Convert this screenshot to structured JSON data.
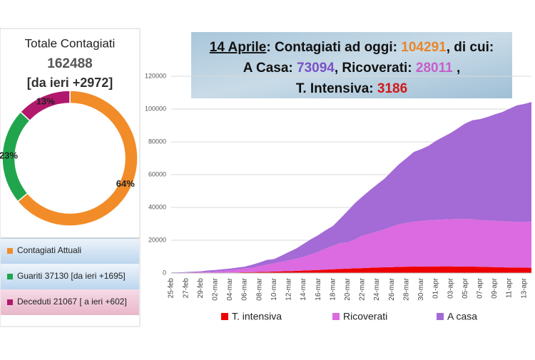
{
  "chart_data": [
    {
      "type": "donut",
      "title": "Totale Contagiati",
      "total": 162488,
      "subtitle": "[da ieri +2972]",
      "categories": [
        "Contagiati Attuali",
        "Guariti 37130 [da ieri +1695]",
        "Deceduti 21067 [ a ieri +602]"
      ],
      "values": [
        64,
        23,
        13
      ],
      "value_labels": [
        "64%",
        "23%",
        "13%"
      ],
      "colors": [
        "#f28c28",
        "#21a54c",
        "#b2186c"
      ]
    },
    {
      "type": "stacked-area",
      "title_lines": [
        [
          {
            "text": "14 Aprile",
            "color": "#111111",
            "underline": true
          },
          {
            "text": ": Contagiati ad oggi: ",
            "color": "#111111"
          },
          {
            "text": "104291",
            "color": "#e8862a"
          },
          {
            "text": ", di cui:",
            "color": "#111111"
          }
        ],
        [
          {
            "text": "A Casa: ",
            "color": "#111111"
          },
          {
            "text": "73094",
            "color": "#7a52c6"
          },
          {
            "text": ", Ricoverati: ",
            "color": "#111111"
          },
          {
            "text": "28011",
            "color": "#c65ec8"
          },
          {
            "text": " ,",
            "color": "#111111"
          }
        ],
        [
          {
            "text": "T. Intensiva: ",
            "color": "#111111"
          },
          {
            "text": "3186",
            "color": "#d01818"
          }
        ]
      ],
      "x": [
        "25-feb",
        null,
        "27-feb",
        null,
        "29-feb",
        null,
        "02-mar",
        null,
        "04-mar",
        null,
        "06-mar",
        null,
        "08-mar",
        null,
        "10-mar",
        null,
        "12-mar",
        null,
        "14-mar",
        null,
        "16-mar",
        null,
        "18-mar",
        null,
        "20-mar",
        null,
        "22-mar",
        null,
        "24-mar",
        null,
        "26-mar",
        null,
        "28-mar",
        null,
        "30-mar",
        null,
        "01-apr",
        null,
        "03-apr",
        null,
        "05-apr",
        null,
        "07-apr",
        null,
        "09-apr",
        null,
        "11-apr",
        null,
        "13-apr",
        null
      ],
      "series": [
        {
          "name": "T. intensiva",
          "color": "#ee0000",
          "values": [
            35,
            36,
            56,
            64,
            105,
            140,
            166,
            229,
            295,
            351,
            462,
            567,
            650,
            733,
            877,
            1028,
            1153,
            1328,
            1518,
            1672,
            1851,
            2060,
            2257,
            2498,
            2655,
            2857,
            3009,
            3204,
            3396,
            3489,
            3612,
            3732,
            3856,
            3906,
            3981,
            4023,
            4035,
            4053,
            4068,
            3994,
            3977,
            3898,
            3792,
            3693,
            3605,
            3497,
            3381,
            3343,
            3260,
            3186
          ]
        },
        {
          "name": "Ricoverati",
          "color": "#dc6ae0",
          "values": [
            114,
            128,
            248,
            345,
            401,
            639,
            742,
            1034,
            1346,
            1790,
            2394,
            2651,
            3557,
            4316,
            5038,
            5838,
            6650,
            7426,
            8372,
            9663,
            11025,
            12894,
            14363,
            15757,
            16020,
            17708,
            19846,
            20692,
            21937,
            23112,
            24753,
            26029,
            26676,
            27386,
            27795,
            28192,
            28403,
            28540,
            28741,
            29010,
            28949,
            28976,
            28485,
            28399,
            28242,
            28144,
            28023,
            27847,
            28023,
            28011
          ]
        },
        {
          "name": "A casa",
          "color": "#a46ad6",
          "values": [
            162,
            221,
            284,
            412,
            543,
            798,
            927,
            1000,
            1065,
            1155,
            1060,
            1843,
            2180,
            2936,
            2599,
            3724,
            5036,
            6201,
            7860,
            9268,
            10197,
            11108,
            12090,
            14935,
            19185,
            22116,
            23783,
            26522,
            28697,
            30920,
            33648,
            36653,
            39533,
            42588,
            43752,
            45420,
            48134,
            50456,
            52579,
            55270,
            58320,
            60313,
            61557,
            63084,
            64873,
            66534,
            68744,
            71063,
            71805,
            73094
          ]
        }
      ],
      "ylim": [
        0,
        120000
      ],
      "yticks": [
        0,
        20000,
        40000,
        60000,
        80000,
        100000,
        120000
      ],
      "grid": true
    }
  ]
}
